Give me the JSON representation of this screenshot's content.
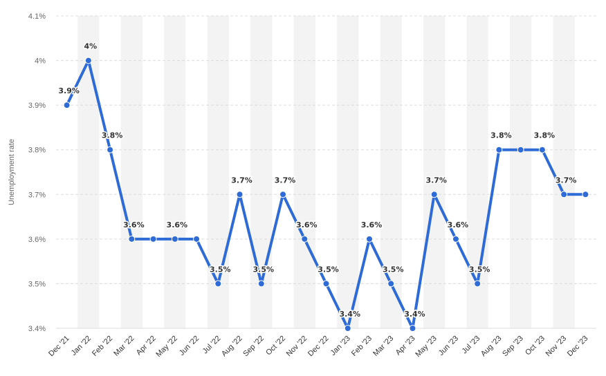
{
  "chart_data": {
    "type": "line",
    "title": "",
    "xlabel": "",
    "ylabel": "Unemployment rate",
    "categories": [
      "Dec '21",
      "Jan '22",
      "Feb '22",
      "Mar '22",
      "Apr '22",
      "May '22",
      "Jun '22",
      "Jul '22",
      "Aug '22",
      "Sep '22",
      "Oct '22",
      "Nov '22",
      "Dec '22",
      "Jan '23",
      "Feb '23",
      "Mar '23",
      "Apr '23",
      "May '23",
      "Jun '23",
      "Jul '23",
      "Aug '23",
      "Sep '23",
      "Oct '23",
      "Nov '23",
      "Dec '23"
    ],
    "values": [
      3.9,
      4.0,
      3.8,
      3.6,
      3.6,
      3.6,
      3.6,
      3.5,
      3.7,
      3.5,
      3.7,
      3.6,
      3.5,
      3.4,
      3.6,
      3.5,
      3.4,
      3.7,
      3.6,
      3.5,
      3.8,
      3.8,
      3.8,
      3.7,
      3.7
    ],
    "data_labels": [
      "3.9%",
      "4%",
      "3.8%",
      "3.6%",
      "",
      "3.6%",
      "",
      "3.5%",
      "3.7%",
      "3.5%",
      "3.7%",
      "3.6%",
      "3.5%",
      "3.4%",
      "3.6%",
      "3.5%",
      "3.4%",
      "3.7%",
      "3.6%",
      "3.5%",
      "3.8%",
      "",
      "3.8%",
      "3.7%",
      ""
    ],
    "y_ticks": [
      3.4,
      3.5,
      3.6,
      3.7,
      3.8,
      3.9,
      4.0,
      4.1
    ],
    "y_tick_labels": [
      "3.4%",
      "3.5%",
      "3.6%",
      "3.7%",
      "3.8%",
      "3.9%",
      "4%",
      "4.1%"
    ],
    "ylim": [
      3.4,
      4.1
    ],
    "grid": true,
    "legend": "none",
    "colors": {
      "line": "#2e6bd6",
      "band": "#f3f3f3",
      "grid": "#dcdcdc"
    }
  }
}
